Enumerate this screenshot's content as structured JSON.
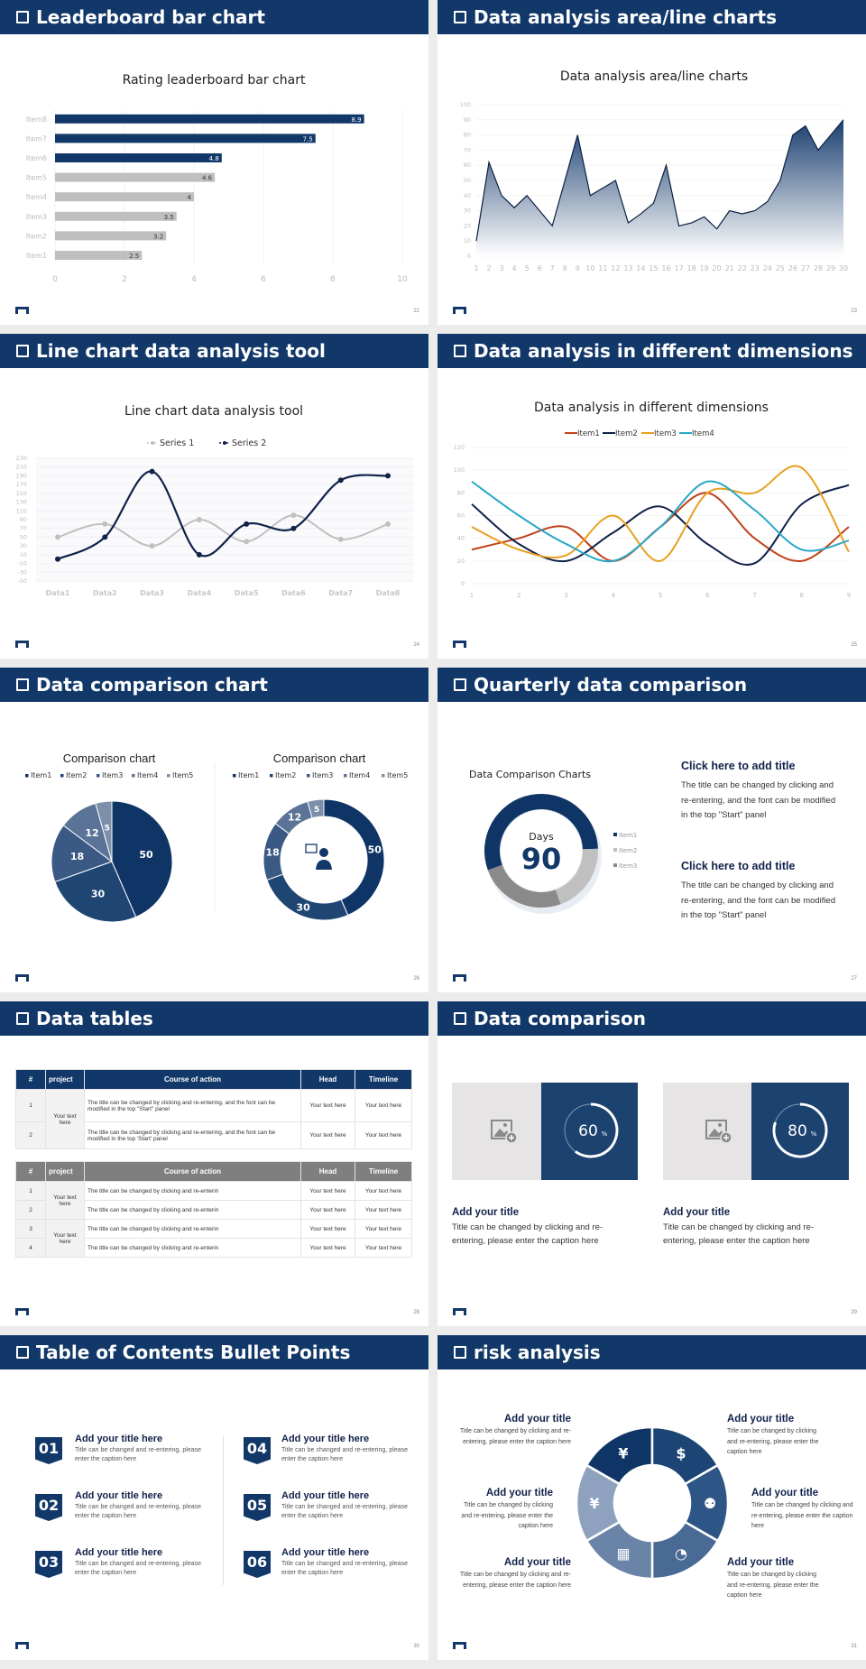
{
  "slides": [
    {
      "title": "Leaderboard bar chart",
      "page": "22"
    },
    {
      "title": "Data analysis area/line charts",
      "page": "23"
    },
    {
      "title": "Line chart data analysis tool",
      "page": "24"
    },
    {
      "title": "Data analysis in different dimensions",
      "page": "25"
    },
    {
      "title": "Data comparison chart",
      "page": "26"
    },
    {
      "title": "Quarterly data comparison",
      "page": "27"
    },
    {
      "title": "Data tables",
      "page": "28"
    },
    {
      "title": "Data comparison",
      "page": "29"
    },
    {
      "title": "Table of Contents Bullet Points",
      "page": "30"
    },
    {
      "title": "risk analysis",
      "page": "31"
    }
  ],
  "quarterly": {
    "center_label": "Days",
    "center_value": "90",
    "blocks": [
      {
        "title": "Click here to add title",
        "text": "The title can be changed by clicking and re-entering, and the font can be modified in the top \"Start\" panel"
      },
      {
        "title": "Click here to add title",
        "text": "The title can be changed by clicking and re-entering, and the font can be modified in the top \"Start\" panel"
      }
    ]
  },
  "tables": {
    "headers": [
      "#",
      "project",
      "Course of action",
      "Head",
      "Timeline"
    ],
    "table1": {
      "project": "Your text here",
      "rows": [
        {
          "num": "1",
          "course": "The title can be changed by clicking and re-entering, and the font can be modified in the top \"Start\" panel",
          "head": "Your text here",
          "timeline": "Your text here"
        },
        {
          "num": "2",
          "course": "The title can be changed by clicking and re-entering, and the font can be modified in the top 'Start' panel",
          "head": "Your text here",
          "timeline": "Your text here"
        }
      ]
    },
    "table2": {
      "projects": [
        "Your text here",
        "Your text here"
      ],
      "rows": [
        {
          "num": "1",
          "course": "The title can be changed by clicking and re-enterin",
          "head": "Your text here",
          "timeline": "Your text here"
        },
        {
          "num": "2",
          "course": "The title can be changed by clicking and re-enterin",
          "head": "Your text here",
          "timeline": "Your text here"
        },
        {
          "num": "3",
          "course": "The title can be changed by clicking and re-enterin",
          "head": "Your text here",
          "timeline": "Your text here"
        },
        {
          "num": "4",
          "course": "The title can be changed by clicking and re-enterin",
          "head": "Your text here",
          "timeline": "Your text here"
        }
      ]
    }
  },
  "comparison": [
    {
      "percent": 60,
      "value": "60",
      "unit": "%",
      "title": "Add your title",
      "text": "Title can be changed by clicking and re-entering, please enter the caption here",
      "icon": "image-add-icon"
    },
    {
      "percent": 80,
      "value": "80",
      "unit": "%",
      "title": "Add your title",
      "text": "Title can be changed by clicking and re-entering, please enter the caption here",
      "icon": "image-add-icon"
    }
  ],
  "toc": [
    {
      "num": "01",
      "title": "Add your title here",
      "text": "Title can be changed and re-entering, please enter the caption here"
    },
    {
      "num": "02",
      "title": "Add your title here",
      "text": "Title can be changed and re-entering, please enter the caption here"
    },
    {
      "num": "03",
      "title": "Add your title here",
      "text": "Title can be changed and re-entering, please enter the caption here"
    },
    {
      "num": "04",
      "title": "Add your title here",
      "text": "Title can be changed and re-entering, please enter the caption here"
    },
    {
      "num": "05",
      "title": "Add your title here",
      "text": "Title can be changed and re-entering, please enter the caption here"
    },
    {
      "num": "06",
      "title": "Add your title here",
      "text": "Title can be changed and re-entering, please enter the caption here"
    }
  ],
  "risk": {
    "items": [
      {
        "title": "Add your title",
        "text": "Title can be changed by clicking and re-entering, please enter the caption here"
      },
      {
        "title": "Add your title",
        "text": "Title can be changed by clicking and re-entering, please enter the caption here"
      },
      {
        "title": "Add your title",
        "text": "Title can be changed by clicking and re-entering, please enter the caption here"
      },
      {
        "title": "Add your title",
        "text": "Title can be changed by clicking and re-entering, please enter the caption here"
      },
      {
        "title": "Add your title",
        "text": "Title can be changed by clicking and re-entering, please enter the caption here"
      },
      {
        "title": "Add your title",
        "text": "Title can be changed by clicking and re-entering, please enter the caption here"
      }
    ],
    "icons": [
      "money-bag-icon",
      "coins-icon",
      "people-icon",
      "pie-chart-icon",
      "building-icon",
      "yen-hand-icon"
    ],
    "colors": [
      "#0f3566",
      "#1c4575",
      "#2d5585",
      "#4a6a96",
      "#6a84a8",
      "#8ea2c0"
    ]
  },
  "chart_data": [
    {
      "type": "bar",
      "orientation": "horizontal",
      "title": "Rating leaderboard bar chart",
      "categories": [
        "Item1",
        "Item2",
        "Item3",
        "Item4",
        "Item5",
        "Item6",
        "Item7",
        "Item8"
      ],
      "values": [
        2.5,
        3.2,
        3.5,
        4,
        4.6,
        4.8,
        7.5,
        8.9
      ],
      "data_labels": [
        "2.5",
        "3.2",
        "3.5",
        "4",
        "4.6",
        "4.8",
        "7.5",
        "8.9"
      ],
      "colors": [
        "#bfbfbf",
        "#bfbfbf",
        "#bfbfbf",
        "#bfbfbf",
        "#bfbfbf",
        "#12386a",
        "#12386a",
        "#12386a"
      ],
      "xlim": [
        0,
        10
      ],
      "xticks": [
        "0",
        "2",
        "4",
        "6",
        "8",
        "10"
      ],
      "grid": true
    },
    {
      "type": "area",
      "title": "Data analysis area/line charts",
      "x": [
        "1",
        "2",
        "3",
        "4",
        "5",
        "6",
        "7",
        "8",
        "9",
        "10",
        "11",
        "12",
        "13",
        "14",
        "15",
        "16",
        "17",
        "18",
        "19",
        "20",
        "21",
        "22",
        "23",
        "24",
        "25",
        "26",
        "27",
        "28",
        "29",
        "30"
      ],
      "values": [
        10,
        62,
        40,
        32,
        40,
        30,
        20,
        50,
        80,
        40,
        45,
        50,
        22,
        28,
        35,
        60,
        20,
        22,
        26,
        18,
        30,
        28,
        30,
        36,
        50,
        80,
        86,
        70,
        80,
        90
      ],
      "ylim": [
        0,
        100
      ],
      "yticks": [
        "0",
        "10",
        "20",
        "30",
        "40",
        "50",
        "60",
        "70",
        "80",
        "90",
        "100"
      ],
      "colors": [
        "#1a3f70",
        "#0b1f3f"
      ],
      "grid": true
    },
    {
      "type": "line",
      "smooth": true,
      "title": "Line chart data analysis tool",
      "categories": [
        "Data1",
        "Data2",
        "Data3",
        "Data4",
        "Data5",
        "Data6",
        "Data7",
        "Data8"
      ],
      "series": [
        {
          "name": "Series 1",
          "values": [
            50,
            80,
            30,
            90,
            40,
            100,
            45,
            80
          ],
          "color": "#c0c0c0"
        },
        {
          "name": "Series 2",
          "values": [
            0,
            50,
            200,
            10,
            80,
            70,
            180,
            190
          ],
          "color": "#10214a"
        }
      ],
      "ylim": [
        -50,
        230
      ],
      "yticks": [
        "-50",
        "-30",
        "-10",
        "10",
        "30",
        "50",
        "70",
        "90",
        "110",
        "130",
        "150",
        "170",
        "190",
        "210",
        "230"
      ],
      "legend": "top",
      "grid": true
    },
    {
      "type": "line",
      "smooth": true,
      "title": "Data analysis in different dimensions",
      "categories": [
        "1",
        "2",
        "3",
        "4",
        "5",
        "6",
        "7",
        "8",
        "9"
      ],
      "series": [
        {
          "name": "Item1",
          "values": [
            30,
            40,
            50,
            20,
            50,
            80,
            40,
            20,
            50
          ],
          "color": "#c0421a"
        },
        {
          "name": "Item2",
          "values": [
            70,
            35,
            20,
            45,
            68,
            35,
            18,
            70,
            87
          ],
          "color": "#10214a"
        },
        {
          "name": "Item3",
          "values": [
            50,
            30,
            25,
            60,
            20,
            80,
            80,
            102,
            28
          ],
          "color": "#e8a020"
        },
        {
          "name": "Item4",
          "values": [
            90,
            60,
            35,
            20,
            50,
            90,
            65,
            30,
            38
          ],
          "color": "#28a8c8"
        }
      ],
      "ylim": [
        0,
        120
      ],
      "yticks": [
        "0",
        "20",
        "40",
        "60",
        "80",
        "100",
        "120"
      ],
      "legend": "top",
      "grid": true
    },
    {
      "type": "pie",
      "title": "Comparison chart",
      "categories": [
        "Item1",
        "Item2",
        "Item3",
        "Item4",
        "Item5"
      ],
      "values": [
        50,
        30,
        18,
        12,
        5
      ],
      "data_labels": [
        "50",
        "30",
        "18",
        "12",
        "5"
      ],
      "colors": [
        "#0f3566",
        "#1f4673",
        "#3a5a85",
        "#5b7396",
        "#7d8fab"
      ],
      "legend": "top"
    },
    {
      "type": "donut",
      "title": "Comparison chart",
      "categories": [
        "Item1",
        "Item2",
        "Item3",
        "Item4",
        "Item5"
      ],
      "values": [
        50,
        30,
        18,
        12,
        5
      ],
      "data_labels": [
        "50",
        "30",
        "18",
        "12",
        "5"
      ],
      "colors": [
        "#0f3566",
        "#1f4673",
        "#3a5a85",
        "#5b7396",
        "#7d8fab"
      ],
      "legend": "top",
      "center_icon": "presenter-icon"
    },
    {
      "type": "donut",
      "title": "Data Comparison Charts",
      "categories": [
        "Item1",
        "Item2",
        "Item3"
      ],
      "values": [
        55,
        20,
        25
      ],
      "colors": [
        "#0f3566",
        "#c0c0c0",
        "#8a8a8a"
      ],
      "legend": "right"
    }
  ]
}
